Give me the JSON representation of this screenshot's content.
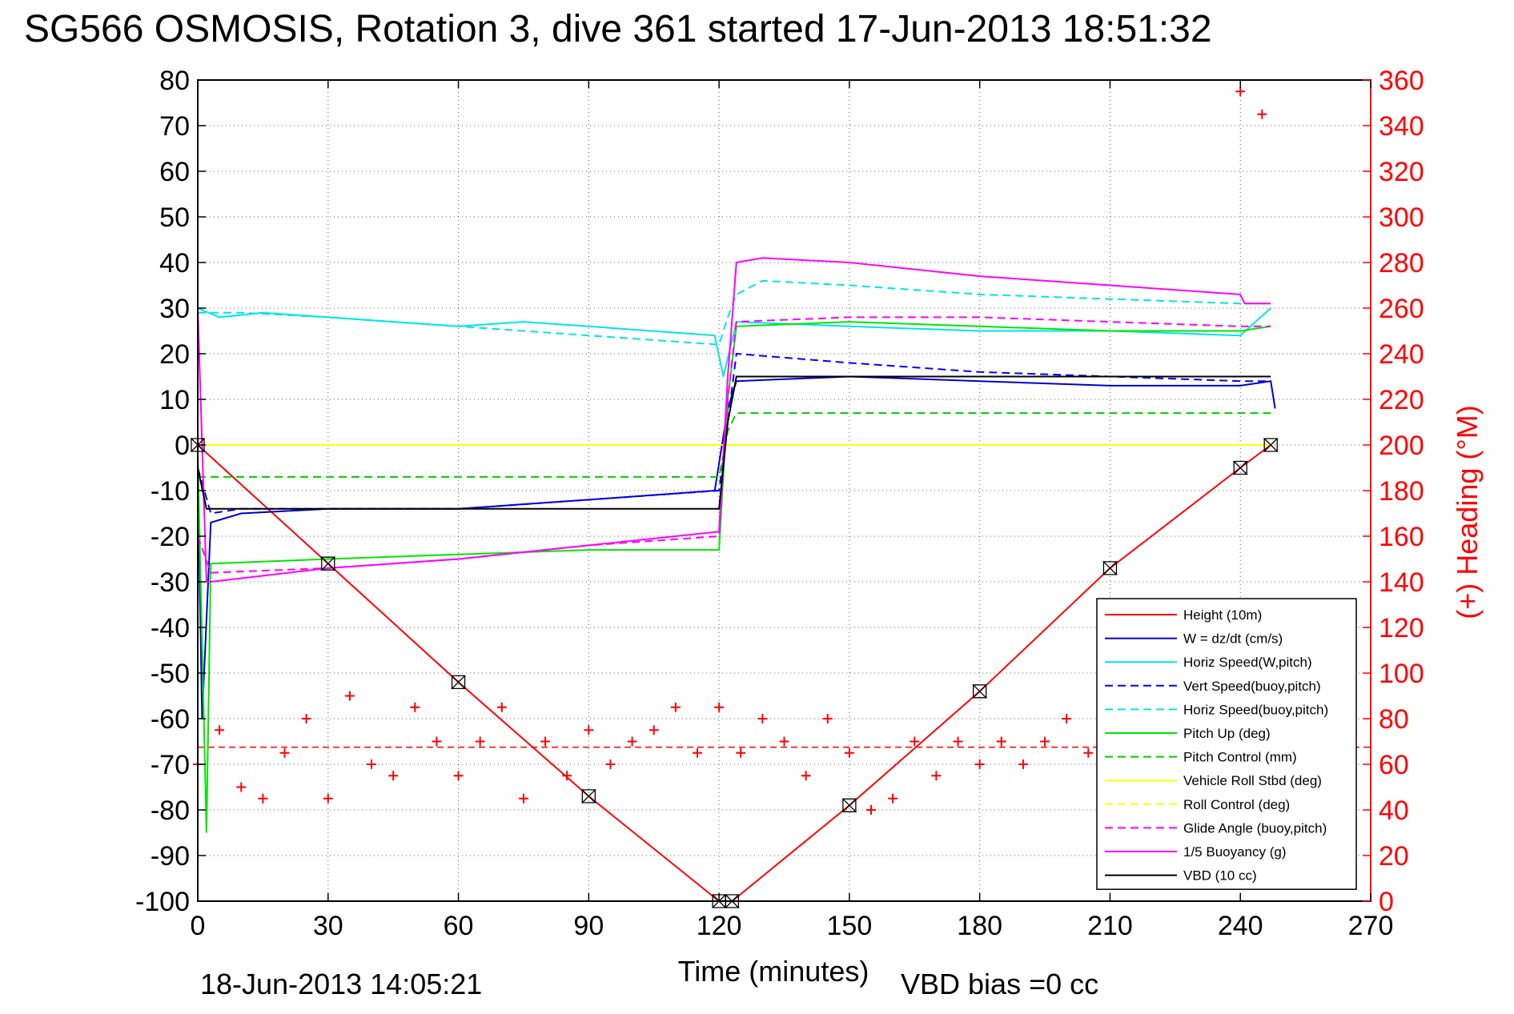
{
  "chart_data": {
    "type": "line",
    "title": "SG566 OSMOSIS, Rotation 3, dive 361 started 17-Jun-2013 18:51:32",
    "xlabel": "Time (minutes)",
    "ylabel_right": "(+) Heading (°M)",
    "footer_left": "18-Jun-2013 14:05:21",
    "footer_right": "VBD bias =0 cc",
    "xlim": [
      0,
      270
    ],
    "ylim_left": [
      -100,
      80
    ],
    "ylim_right": [
      0,
      360
    ],
    "x_ticks": [
      0,
      30,
      60,
      90,
      120,
      150,
      180,
      210,
      240,
      270
    ],
    "y_ticks_left": [
      80,
      70,
      60,
      50,
      40,
      30,
      20,
      10,
      0,
      -10,
      -20,
      -30,
      -40,
      -50,
      -60,
      -70,
      -80,
      -90,
      -100
    ],
    "y_ticks_right": [
      360,
      340,
      320,
      300,
      280,
      260,
      240,
      220,
      200,
      180,
      160,
      140,
      120,
      100,
      80,
      60,
      40,
      20,
      0
    ],
    "grid": true,
    "legend_position": "lower-right",
    "colors": {
      "left_axis": "#000000",
      "right_axis": "#ff0000"
    },
    "series": [
      {
        "name": "Height (10m)",
        "color": "#ff0000",
        "dash": "solid",
        "x": [
          0,
          30,
          60,
          90,
          120,
          123,
          150,
          180,
          210,
          240,
          247
        ],
        "y": [
          0,
          -26,
          -52,
          -77,
          -100,
          -100,
          -79,
          -54,
          -27,
          -5,
          0
        ]
      },
      {
        "name": "W = dz/dt (cm/s)",
        "color": "#0000cc",
        "dash": "solid",
        "x": [
          0,
          1,
          3,
          10,
          30,
          60,
          90,
          119,
          122,
          124,
          150,
          180,
          210,
          240,
          247,
          248
        ],
        "y": [
          -5,
          -60,
          -17,
          -15,
          -14,
          -14,
          -12,
          -10,
          8,
          14,
          15,
          14,
          13,
          13,
          14,
          8
        ]
      },
      {
        "name": "Horiz Speed(W,pitch)",
        "color": "#00e5e5",
        "dash": "solid",
        "x": [
          0,
          5,
          15,
          30,
          60,
          75,
          90,
          119,
          121,
          124,
          150,
          180,
          210,
          240,
          247
        ],
        "y": [
          30,
          28,
          29,
          28,
          26,
          27,
          26,
          24,
          15,
          27,
          26,
          25,
          25,
          24,
          30
        ]
      },
      {
        "name": "Vert Speed(buoy,pitch)",
        "color": "#0000ff",
        "dash": "dashed",
        "x": [
          0,
          3,
          10,
          60,
          120,
          122,
          124,
          150,
          180,
          210,
          240,
          247
        ],
        "y": [
          -5,
          -15,
          -14,
          -14,
          -10,
          5,
          20,
          18,
          16,
          15,
          14,
          14
        ]
      },
      {
        "name": "Horiz Speed(buoy,pitch)",
        "color": "#00e5e5",
        "dash": "dashed",
        "x": [
          0,
          10,
          30,
          60,
          90,
          120,
          122,
          124,
          130,
          150,
          180,
          210,
          240,
          247
        ],
        "y": [
          29,
          29,
          28,
          26,
          24,
          22,
          28,
          33,
          36,
          35,
          33,
          32,
          31,
          31
        ]
      },
      {
        "name": "Pitch Up (deg)",
        "color": "#00e600",
        "dash": "solid",
        "x": [
          0,
          2,
          3,
          30,
          60,
          90,
          120,
          122,
          124,
          150,
          180,
          210,
          240,
          247
        ],
        "y": [
          -2,
          -85,
          -26,
          -25,
          -24,
          -23,
          -23,
          10,
          26,
          27,
          26,
          25,
          25,
          26
        ]
      },
      {
        "name": "Pitch Control (mm)",
        "color": "#00cc00",
        "dash": "dashed",
        "x": [
          0,
          3,
          120,
          122,
          124,
          247
        ],
        "y": [
          -7,
          -7,
          -7,
          3,
          7,
          7
        ]
      },
      {
        "name": "Vehicle Roll Stbd (deg)",
        "color": "#ffff00",
        "dash": "solid",
        "x": [
          0,
          3,
          30,
          60,
          90,
          120,
          122,
          124,
          150,
          180,
          210,
          240,
          247
        ],
        "y": [
          0,
          0,
          0,
          0,
          0,
          0,
          0,
          0,
          0,
          0,
          0,
          0,
          0
        ]
      },
      {
        "name": "Roll Control (deg)",
        "color": "#ffff00",
        "dash": "dashed",
        "x": [
          0,
          3,
          30,
          60,
          90,
          120,
          122,
          124,
          150,
          180,
          210,
          240,
          247
        ],
        "y": [
          0,
          0,
          0,
          0,
          0,
          0,
          0,
          0,
          0,
          0,
          0,
          0,
          0
        ]
      },
      {
        "name": "Glide Angle (buoy,pitch)",
        "color": "#ff00ff",
        "dash": "dashed",
        "x": [
          0,
          3,
          30,
          60,
          90,
          120,
          122,
          124,
          150,
          180,
          210,
          240,
          247
        ],
        "y": [
          -20,
          -28,
          -27,
          -25,
          -22,
          -20,
          10,
          27,
          28,
          28,
          27,
          26,
          26
        ]
      },
      {
        "name": "1/5 Buoyancy (g)",
        "color": "#ff00ff",
        "dash": "solid",
        "x": [
          0,
          2,
          3,
          30,
          60,
          90,
          120,
          122,
          124,
          130,
          150,
          180,
          210,
          240,
          241,
          247
        ],
        "y": [
          30,
          -30,
          -30,
          -27,
          -25,
          -22,
          -19,
          15,
          40,
          41,
          40,
          37,
          35,
          33,
          31,
          31
        ]
      },
      {
        "name": "VBD (10 cc)",
        "color": "#000000",
        "dash": "solid",
        "x": [
          0,
          2,
          3,
          120,
          122,
          124,
          247
        ],
        "y": [
          -5,
          -14,
          -14,
          -14,
          5,
          15,
          15
        ]
      }
    ],
    "heading": {
      "name": "(+) Heading (°M)",
      "color": "#ff0000",
      "marker": "+",
      "x": [
        0,
        5,
        10,
        15,
        20,
        25,
        30,
        35,
        40,
        45,
        50,
        55,
        60,
        65,
        70,
        75,
        80,
        85,
        90,
        95,
        100,
        105,
        110,
        115,
        120,
        125,
        130,
        135,
        140,
        145,
        150,
        155,
        160,
        165,
        170,
        175,
        180,
        185,
        190,
        195,
        200,
        205,
        210,
        215,
        220,
        225,
        230,
        235,
        240,
        245
      ],
      "y": [
        60,
        75,
        50,
        45,
        65,
        80,
        45,
        90,
        60,
        55,
        85,
        70,
        55,
        70,
        85,
        45,
        70,
        55,
        75,
        60,
        70,
        75,
        85,
        65,
        85,
        65,
        80,
        70,
        55,
        80,
        65,
        40,
        45,
        70,
        55,
        70,
        60,
        70,
        60,
        70,
        80,
        65,
        55,
        60,
        70,
        65,
        70,
        80,
        355,
        345
      ]
    },
    "heading_mean": 67.5
  }
}
